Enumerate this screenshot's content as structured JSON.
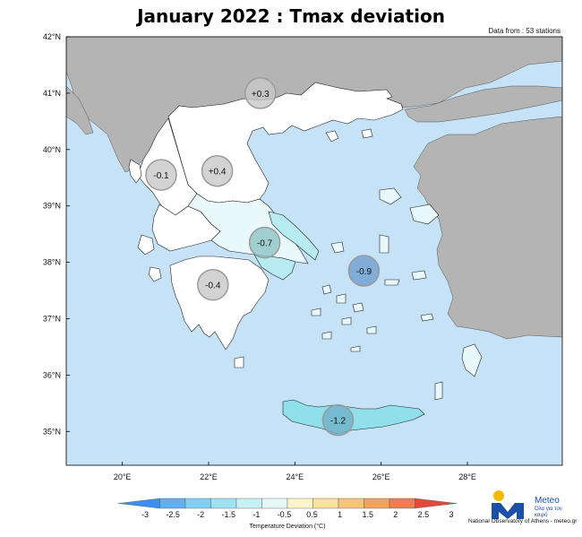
{
  "title": "January 2022 : Tmax deviation",
  "subtitle": "Data from : 53 stations",
  "lat_labels": [
    "42°N",
    "41°N",
    "40°N",
    "39°N",
    "38°N",
    "37°N",
    "36°N",
    "35°N"
  ],
  "lon_labels": [
    "20°E",
    "22°E",
    "24°E",
    "26°E",
    "28°E"
  ],
  "map_extent": {
    "lon": [
      18.7,
      30.2
    ],
    "lat": [
      34.4,
      42.0
    ]
  },
  "colors": {
    "sea": "#c5e2f7",
    "foreign_land": "#b4b4b4",
    "greece_neutral": "#ffffff",
    "cool_1": "#e8f8fb",
    "cool_2": "#b6ecf1",
    "cool_3": "#8fe0ea"
  },
  "regions": [
    {
      "label": "+0.3",
      "lon": 23.2,
      "lat": 41.0,
      "value": 0.3
    },
    {
      "label": "-0.1",
      "lon": 20.9,
      "lat": 39.55,
      "value": -0.1
    },
    {
      "label": "+0.4",
      "lon": 22.2,
      "lat": 39.62,
      "value": 0.4
    },
    {
      "label": "-0.7",
      "lon": 23.3,
      "lat": 38.35,
      "value": -0.7
    },
    {
      "label": "-0.9",
      "lon": 25.6,
      "lat": 37.85,
      "value": -0.9
    },
    {
      "label": "-0.4",
      "lon": 22.1,
      "lat": 37.6,
      "value": -0.4
    },
    {
      "label": "-1.2",
      "lon": 25.0,
      "lat": 35.2,
      "value": -1.2
    }
  ],
  "colorbar": {
    "label": "Temperature Deviation (°C)",
    "ticks": [
      "-3",
      "-2.5",
      "-2",
      "-1.5",
      "-1",
      "-0.5",
      "0.5",
      "1",
      "1.5",
      "2",
      "2.5",
      "3"
    ],
    "colors": [
      "#3a8ff0",
      "#5cb0f3",
      "#7fd0f3",
      "#9fe2ef",
      "#c6f0f3",
      "#e6f8f8",
      "#fbf3cc",
      "#f8e19a",
      "#f5c675",
      "#f2a35c",
      "#ee7c4c",
      "#e34a3c"
    ]
  },
  "logo": {
    "word": "Meteo",
    "tagline": "Όλα για τον καιρό",
    "credit": "National Observatory of Athens - meteo.gr"
  }
}
